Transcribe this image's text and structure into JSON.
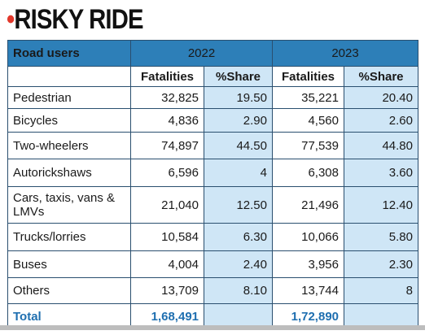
{
  "title_bullet": "•",
  "title": "RISKY RIDE",
  "chart_data": {
    "type": "table",
    "title": "RISKY RIDE",
    "header": {
      "first": "Road users",
      "year1": "2022",
      "year2": "2023"
    },
    "subheader": {
      "fatalities": "Fatalities",
      "share": "%Share"
    },
    "rows": [
      {
        "label": "Pedestrian",
        "f2022": "32,825",
        "s2022": "19.50",
        "f2023": "35,221",
        "s2023": "20.40"
      },
      {
        "label": "Bicycles",
        "f2022": "4,836",
        "s2022": "2.90",
        "f2023": "4,560",
        "s2023": "2.60"
      },
      {
        "label": "Two-wheelers",
        "f2022": "74,897",
        "s2022": "44.50",
        "f2023": "77,539",
        "s2023": "44.80"
      },
      {
        "label": "Autorickshaws",
        "f2022": "6,596",
        "s2022": "4",
        "f2023": "6,308",
        "s2023": "3.60"
      },
      {
        "label": "Cars, taxis, vans & LMVs",
        "f2022": "21,040",
        "s2022": "12.50",
        "f2023": "21,496",
        "s2023": "12.40"
      },
      {
        "label": "Trucks/lorries",
        "f2022": "10,584",
        "s2022": "6.30",
        "f2023": "10,066",
        "s2023": "5.80"
      },
      {
        "label": "Buses",
        "f2022": "4,004",
        "s2022": "2.40",
        "f2023": "3,956",
        "s2023": "2.30"
      },
      {
        "label": "Others",
        "f2022": "13,709",
        "s2022": "8.10",
        "f2023": "13,744",
        "s2023": "8"
      }
    ],
    "total": {
      "label": "Total",
      "f2022": "1,68,491",
      "f2023": "1,72,890"
    }
  },
  "colors": {
    "header_bg": "#2d7fb8",
    "share_bg": "#cfe6f6",
    "subheader_text": "#d8302a",
    "total_text": "#1f6fb0",
    "title_bullet": "#e2382b"
  }
}
